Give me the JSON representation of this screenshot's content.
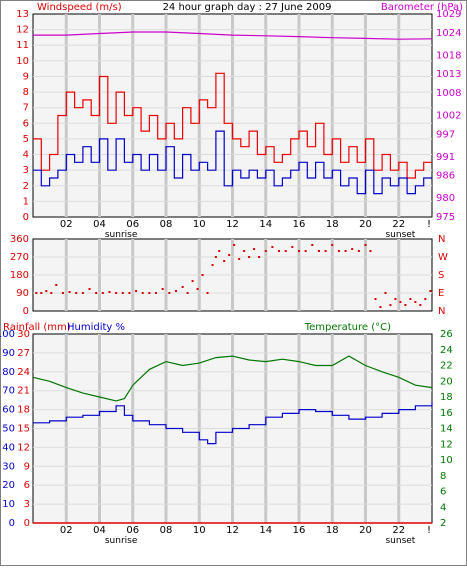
{
  "header": {
    "title": "24 hour graph day : 27 June 2009",
    "left_label": "Windspeed (m/s)",
    "right_label": "Barometer (hPa)"
  },
  "colors": {
    "wind": "#dd0000",
    "gust": "#ee0000",
    "avgwind": "#0000cc",
    "barometer": "#cc00cc",
    "direction": "#dd0000",
    "rain": "#dd0000",
    "humidity": "#0000cc",
    "temperature": "#007700",
    "grid": "#c8c8c8",
    "plot_bg": "#f4f4f4",
    "axis": "#000000"
  },
  "x_axis": {
    "ticks": [
      "02",
      "04",
      "06",
      "08",
      "10",
      "12",
      "14",
      "16",
      "18",
      "20",
      "22"
    ],
    "sunrise_label": "sunrise",
    "sunset_label": "sunset",
    "end_label": "!"
  },
  "wind_panel": {
    "yticks_left": [
      "13",
      "12",
      "11",
      "10",
      "9",
      "8",
      "7",
      "6",
      "5",
      "4",
      "3",
      "2",
      "1",
      "0"
    ],
    "yticks_right": [
      "1029",
      "1024",
      "1018",
      "1013",
      "1008",
      "1002",
      "997",
      "991",
      "986",
      "980",
      "975"
    ]
  },
  "dir_panel": {
    "yticks_left": [
      "360",
      "270",
      "180",
      "90",
      "0"
    ],
    "yticks_right": [
      "N",
      "W",
      "S",
      "E",
      "N"
    ]
  },
  "climate_panel": {
    "rain_label": "Rainfall (mm)",
    "humidity_label": "Humidity %",
    "temp_label": "Temperature (°C)",
    "yticks_rain": [
      "30",
      "27",
      "24",
      "21",
      "18",
      "15",
      "12",
      "9",
      "6",
      "3",
      "0"
    ],
    "yticks_hum": [
      "100",
      "90",
      "80",
      "70",
      "60",
      "50",
      "40",
      "30",
      "20",
      "10",
      "0"
    ],
    "yticks_temp": [
      "26",
      "24",
      "22",
      "20",
      "18",
      "16",
      "14",
      "12",
      "10",
      "8",
      "6",
      "4",
      "2"
    ]
  },
  "chart_data": [
    {
      "type": "line",
      "title": "24 hour graph day : 27 June 2009",
      "ylabel": "Windspeed (m/s)",
      "y2label": "Barometer (hPa)",
      "xlim": [
        0,
        24
      ],
      "ylim": [
        0,
        13
      ],
      "y2lim": [
        975,
        1029
      ],
      "series": [
        {
          "x": [
            0,
            0.5,
            1,
            1.5,
            2,
            2.5,
            3,
            3.5,
            4,
            4.5,
            5,
            5.5,
            6,
            6.5,
            7,
            7.5,
            8,
            8.5,
            9,
            9.5,
            10,
            10.5,
            11,
            11.5,
            12,
            12.5,
            13,
            13.5,
            14,
            14.5,
            15,
            15.5,
            16,
            16.5,
            17,
            17.5,
            18,
            18.5,
            19,
            19.5,
            20,
            20.5,
            21,
            21.5,
            22,
            22.5,
            23,
            23.5
          ],
          "values": [
            5,
            3,
            4,
            6.5,
            8,
            7,
            7.5,
            6.5,
            9,
            6,
            8,
            6.5,
            7,
            5.5,
            6.5,
            5,
            6,
            5,
            7,
            6,
            7.5,
            7,
            9.2,
            6,
            5,
            4.5,
            5.5,
            4,
            4.5,
            3.5,
            4,
            5,
            5.5,
            4.5,
            6,
            4,
            5,
            3.5,
            4.5,
            3.5,
            5,
            3,
            4,
            3,
            3.5,
            2.5,
            3,
            3.5
          ]
        },
        {
          "x": [
            0,
            0.5,
            1,
            1.5,
            2,
            2.5,
            3,
            3.5,
            4,
            4.5,
            5,
            5.5,
            6,
            6.5,
            7,
            7.5,
            8,
            8.5,
            9,
            9.5,
            10,
            10.5,
            11,
            11.5,
            12,
            12.5,
            13,
            13.5,
            14,
            14.5,
            15,
            15.5,
            16,
            16.5,
            17,
            17.5,
            18,
            18.5,
            19,
            19.5,
            20,
            20.5,
            21,
            21.5,
            22,
            22.5,
            23,
            23.5
          ],
          "values": [
            3,
            2,
            2.5,
            3,
            4,
            3.5,
            4.5,
            3.5,
            5,
            3,
            5,
            3.5,
            4,
            3,
            4,
            3,
            4.5,
            2.5,
            4,
            3,
            3.5,
            3,
            5.5,
            2,
            3,
            2.5,
            3,
            2.5,
            3,
            2,
            2.5,
            3,
            3.5,
            2.5,
            3.5,
            2.5,
            3,
            2,
            2.5,
            1.5,
            3,
            1.5,
            2.5,
            2,
            2.5,
            1.5,
            2,
            2.5
          ]
        },
        {
          "x": [
            0,
            2,
            4,
            6,
            8,
            10,
            12,
            14,
            16,
            18,
            20,
            22,
            24
          ],
          "values": [
            1023.4,
            1023.4,
            1023.8,
            1024.2,
            1024.2,
            1023.8,
            1023.4,
            1023.2,
            1023,
            1022.7,
            1022.5,
            1022.3,
            1022.4
          ]
        }
      ]
    },
    {
      "type": "scatter",
      "ylabel": "Wind direction",
      "xlim": [
        0,
        24
      ],
      "ylim": [
        0,
        360
      ],
      "series": [
        {
          "x": [
            0.2,
            0.5,
            0.8,
            1.1,
            1.4,
            1.8,
            2.2,
            2.6,
            3,
            3.4,
            3.8,
            4.2,
            4.6,
            5,
            5.4,
            5.8,
            6.2,
            6.6,
            7,
            7.4,
            7.8,
            8.2,
            8.6,
            9,
            9.3,
            9.6,
            9.9,
            10.2,
            10.5,
            10.8,
            11,
            11.2,
            11.5,
            11.8,
            12.1,
            12.4,
            12.7,
            13,
            13.3,
            13.6,
            14,
            14.4,
            14.8,
            15.2,
            15.6,
            16,
            16.4,
            16.8,
            17.2,
            17.6,
            18,
            18.4,
            18.8,
            19.2,
            19.6,
            20,
            20.3,
            20.6,
            20.9,
            21.2,
            21.5,
            21.8,
            22.1,
            22.4,
            22.7,
            23,
            23.3,
            23.6,
            23.9
          ],
          "values": [
            90,
            90,
            100,
            90,
            130,
            90,
            95,
            90,
            90,
            110,
            90,
            90,
            95,
            90,
            90,
            90,
            100,
            90,
            90,
            90,
            110,
            90,
            100,
            120,
            90,
            150,
            110,
            180,
            90,
            230,
            270,
            300,
            250,
            280,
            330,
            260,
            300,
            270,
            310,
            270,
            300,
            320,
            300,
            300,
            320,
            300,
            300,
            330,
            300,
            300,
            330,
            300,
            300,
            310,
            300,
            330,
            300,
            60,
            20,
            90,
            30,
            60,
            45,
            30,
            60,
            45,
            30,
            60,
            100
          ]
        }
      ]
    },
    {
      "type": "line",
      "ylabel": "Rainfall (mm)",
      "y2label": "Temperature (°C)",
      "xlim": [
        0,
        24
      ],
      "ylim": [
        0,
        30
      ],
      "y2lim": [
        2,
        26
      ],
      "series": [
        {
          "x": [
            0,
            24
          ],
          "values": [
            0,
            0
          ]
        },
        {
          "x": [
            0,
            1,
            2,
            3,
            4,
            5,
            5.5,
            6,
            7,
            8,
            9,
            10,
            10.5,
            11,
            12,
            13,
            14,
            15,
            16,
            17,
            18,
            19,
            20,
            21,
            22,
            23,
            24
          ],
          "values": [
            53,
            54,
            56,
            57,
            59,
            62,
            57,
            54,
            52,
            50,
            48,
            44,
            42,
            48,
            50,
            52,
            56,
            58,
            60,
            59,
            57,
            55,
            56,
            58,
            60,
            62,
            64
          ]
        },
        {
          "x": [
            0,
            1,
            2,
            3,
            4,
            5,
            5.5,
            6,
            7,
            8,
            9,
            10,
            11,
            12,
            13,
            14,
            15,
            16,
            17,
            18,
            19,
            20,
            21,
            22,
            23,
            24
          ],
          "values": [
            20.5,
            20,
            19.2,
            18.5,
            18,
            17.5,
            17.8,
            19.5,
            21.5,
            22.5,
            22,
            22.3,
            23,
            23.2,
            22.7,
            22.5,
            22.8,
            22.5,
            22,
            22,
            23.2,
            22,
            21.2,
            20.5,
            19.5,
            19.2
          ]
        }
      ]
    }
  ]
}
